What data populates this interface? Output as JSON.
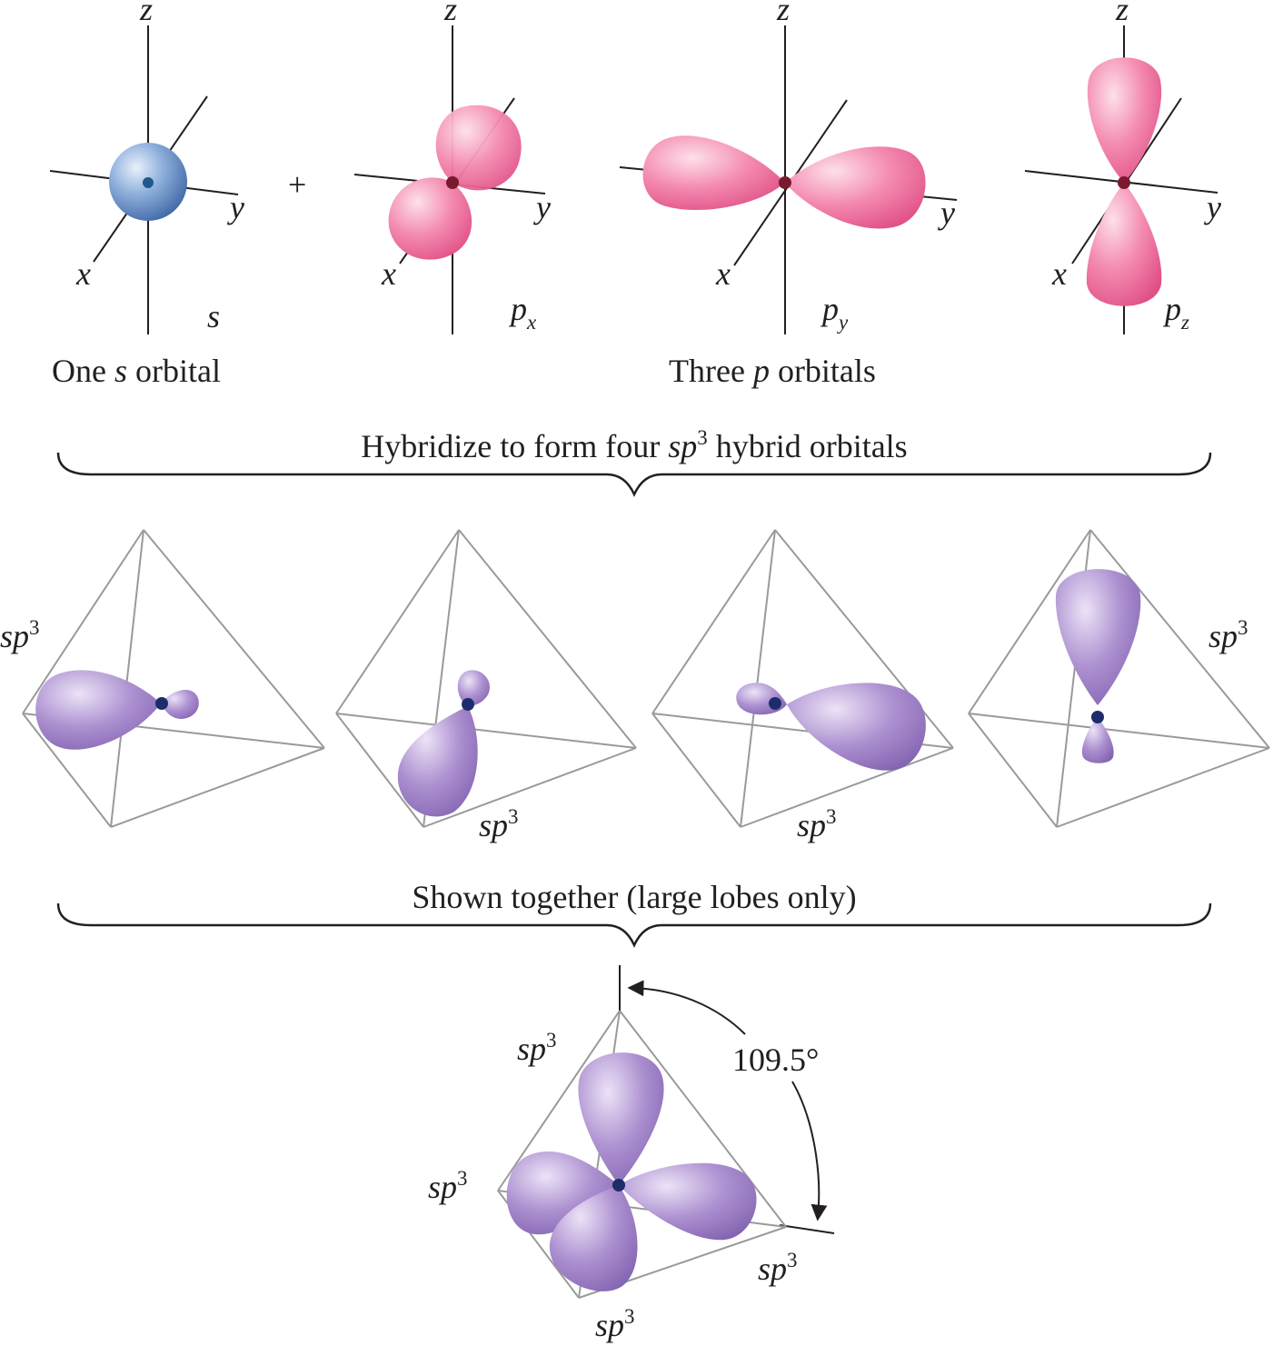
{
  "top_row": {
    "s_panel": {
      "axes": {
        "z": "z",
        "x": "x",
        "y": "y"
      },
      "orbital_label": "s"
    },
    "plus_sign": "+",
    "px_panel": {
      "axes": {
        "z": "z",
        "x": "x",
        "y": "y"
      },
      "orbital_label": "p",
      "orbital_subscript": "x"
    },
    "py_panel": {
      "axes": {
        "z": "z",
        "x": "x",
        "y": "y"
      },
      "orbital_label": "p",
      "orbital_subscript": "y"
    },
    "pz_panel": {
      "axes": {
        "z": "z",
        "x": "x",
        "y": "y"
      },
      "orbital_label": "p",
      "orbital_subscript": "z"
    },
    "caption_s": {
      "pre": "One ",
      "italic": "s",
      "post": " orbital"
    },
    "caption_p": {
      "pre": "Three ",
      "italic": "p",
      "post": " orbitals"
    }
  },
  "brace_1": {
    "pre": "Hybridize to form four ",
    "italic": "sp",
    "sup": "3",
    "post": " hybrid orbitals"
  },
  "hybrid_row": {
    "label": {
      "italic": "sp",
      "sup": "3"
    }
  },
  "brace_2": {
    "text": "Shown together (large lobes only)"
  },
  "combined": {
    "angle": "109.5°",
    "label": {
      "italic": "sp",
      "sup": "3"
    }
  },
  "colors": {
    "s_orbital": "#6f95cc",
    "p_orbital": "#f2709e",
    "sp3_orbital": "#9d7cc4",
    "nucleus_s": "#1e5a8c",
    "nucleus_p": "#7a1a2e",
    "nucleus_sp3": "#1d2d6b",
    "axis": "#231f20",
    "tetrahedron": "#9a9a9a"
  }
}
